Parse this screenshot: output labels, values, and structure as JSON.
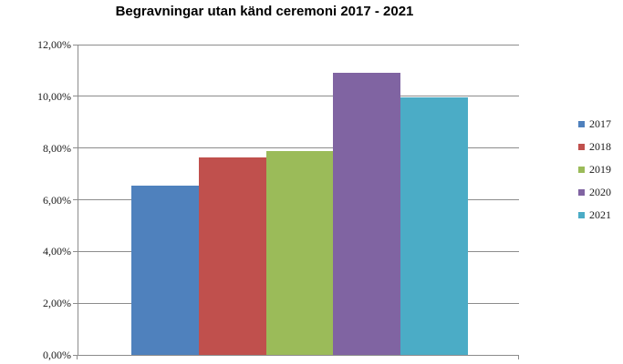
{
  "chart_data": {
    "type": "bar",
    "title": "Begravningar utan känd ceremoni 2017 - 2021",
    "categories": [
      "2017",
      "2018",
      "2019",
      "2020",
      "2021"
    ],
    "values": [
      6.55,
      7.65,
      7.9,
      10.9,
      9.95
    ],
    "series_colors": [
      "#4F81BD",
      "#C0504D",
      "#9BBB59",
      "#8064A2",
      "#4BACC6"
    ],
    "xlabel": "",
    "ylabel": "",
    "ylim": [
      0,
      12
    ],
    "ytick_step": 2,
    "ytick_labels": [
      "0,00%",
      "2,00%",
      "4,00%",
      "6,00%",
      "8,00%",
      "10,00%",
      "12,00%"
    ],
    "grid": true,
    "legend_position": "right",
    "legend_entries": [
      "2017",
      "2018",
      "2019",
      "2020",
      "2021"
    ],
    "axis_color": "#8c8c8c",
    "gridline_color": "#8c8c8c",
    "background_color": "#ffffff"
  }
}
